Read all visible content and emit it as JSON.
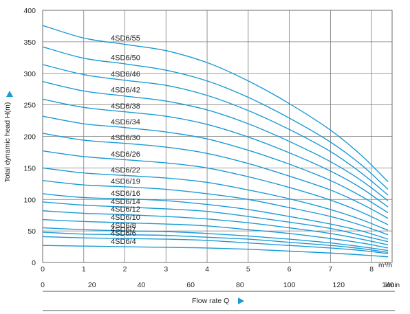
{
  "chart_data": {
    "type": "line",
    "title": "",
    "xlabel": "Flow rate Q",
    "ylabel": "Total dynamic head H(m)",
    "x_unit_primary": "m³/h",
    "x_unit_secondary": "l/min",
    "xlim": [
      0,
      8.5
    ],
    "ylim": [
      0,
      400
    ],
    "x_ticks": [
      "0",
      "1",
      "2",
      "3",
      "4",
      "5",
      "6",
      "7",
      "8"
    ],
    "x_ticks_secondary": [
      "0",
      "20",
      "40",
      "60",
      "80",
      "100",
      "120",
      "140"
    ],
    "y_ticks": [
      "0",
      "50",
      "100",
      "150",
      "200",
      "250",
      "300",
      "350",
      "400"
    ],
    "grid": true,
    "line_color": "#1a9ad6",
    "x": [
      0,
      1,
      2,
      3,
      4,
      5,
      6,
      7,
      7.75,
      8.4
    ],
    "series": [
      {
        "name": "4SD6/55",
        "values": [
          376,
          356,
          346,
          336,
          317,
          288,
          252,
          210,
          170,
          128
        ]
      },
      {
        "name": "4SD6/50",
        "values": [
          342,
          324,
          315,
          305,
          288,
          262,
          229,
          191,
          155,
          116
        ]
      },
      {
        "name": "4SD6/46",
        "values": [
          314,
          298,
          289,
          281,
          265,
          241,
          211,
          176,
          142,
          107
        ]
      },
      {
        "name": "4SD6/42",
        "values": [
          287,
          272,
          264,
          256,
          242,
          220,
          192,
          160,
          130,
          98
        ]
      },
      {
        "name": "4SD6/38",
        "values": [
          259,
          246,
          239,
          232,
          219,
          199,
          174,
          145,
          118,
          88
        ]
      },
      {
        "name": "4SD6/34",
        "values": [
          232,
          220,
          214,
          207,
          196,
          178,
          156,
          130,
          105,
          79
        ]
      },
      {
        "name": "4SD6/30",
        "values": [
          205,
          194,
          189,
          183,
          173,
          157,
          137,
          115,
          93,
          70
        ]
      },
      {
        "name": "4SD6/26",
        "values": [
          177,
          168,
          163,
          158,
          150,
          136,
          119,
          99,
          80,
          60
        ]
      },
      {
        "name": "4SD6/22",
        "values": [
          150,
          142,
          138,
          134,
          127,
          115,
          101,
          84,
          68,
          51
        ]
      },
      {
        "name": "4SD6/19",
        "values": [
          130,
          123,
          120,
          116,
          109,
          100,
          87,
          73,
          59,
          44
        ]
      },
      {
        "name": "4SD6/16",
        "values": [
          109,
          103,
          101,
          98,
          92,
          84,
          73,
          61,
          50,
          37
        ]
      },
      {
        "name": "4SD6/14",
        "values": [
          96,
          91,
          88,
          85,
          81,
          73,
          64,
          54,
          43,
          33
        ]
      },
      {
        "name": "4SD6/12",
        "values": [
          82,
          78,
          76,
          73,
          69,
          63,
          55,
          46,
          37,
          28
        ]
      },
      {
        "name": "4SD6/10",
        "values": [
          68,
          65,
          63,
          61,
          58,
          52,
          46,
          38,
          31,
          23
        ]
      },
      {
        "name": "4SD6/8",
        "values": [
          55,
          52,
          50,
          49,
          46,
          42,
          37,
          31,
          25,
          19
        ]
      },
      {
        "name": "4SD6/7",
        "values": [
          48,
          45,
          44,
          43,
          40,
          37,
          32,
          27,
          22,
          16
        ]
      },
      {
        "name": "4SD6/6",
        "values": [
          41,
          39,
          38,
          37,
          35,
          31,
          27,
          23,
          19,
          14
        ]
      },
      {
        "name": "4SD6/4",
        "values": [
          27,
          26,
          25,
          24,
          23,
          21,
          18,
          15,
          12,
          9
        ]
      }
    ]
  }
}
